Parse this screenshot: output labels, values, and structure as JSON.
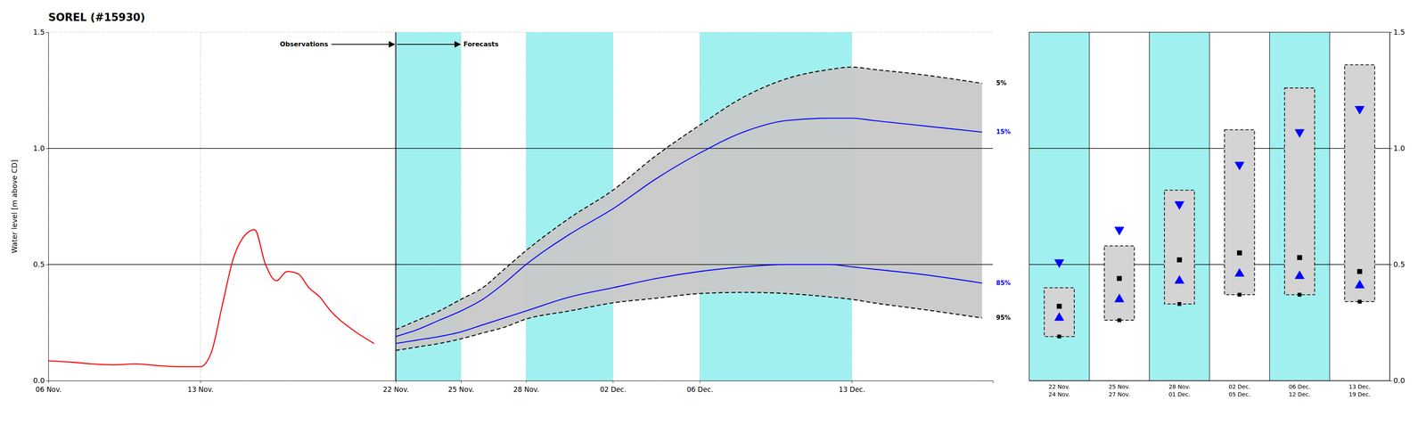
{
  "chart_data": [
    {
      "type": "line",
      "title": "SOREL (#15930)",
      "ylabel": "Water level [m above CD]",
      "xlim": [
        0,
        43.5
      ],
      "xticks": [
        {
          "value": 0,
          "label": "06 Nov."
        },
        {
          "value": 7,
          "label": "13 Nov."
        },
        {
          "value": 16,
          "label": "22 Nov."
        },
        {
          "value": 19,
          "label": "25 Nov."
        },
        {
          "value": 22,
          "label": "28 Nov."
        },
        {
          "value": 26,
          "label": "02 Dec."
        },
        {
          "value": 30,
          "label": "06 Dec."
        },
        {
          "value": 37,
          "label": "13 Dec."
        }
      ],
      "ylim": [
        0.0,
        1.5
      ],
      "yticks": [
        {
          "value": 0,
          "label": "0.0"
        },
        0.5,
        {
          "value": 1,
          "label": "1.0"
        },
        1.5
      ],
      "grid": true,
      "bands": {
        "ranges": [
          [
            16,
            19
          ],
          [
            22,
            26
          ],
          [
            30,
            37
          ]
        ],
        "color": "#6ee8e8"
      },
      "forecast_start": 16,
      "reference_lines": [
        0.5,
        1.0
      ],
      "annotations": [
        "Observations",
        "Forecasts"
      ],
      "series": [
        {
          "color": "red",
          "line_style": "solid",
          "x": [
            0,
            1,
            2,
            3,
            4,
            5,
            6,
            7,
            7.5,
            8,
            8.5,
            9,
            9.5,
            10,
            10.5,
            11,
            11.5,
            12,
            12.5,
            13,
            14,
            15
          ],
          "values": [
            0.085,
            0.08,
            0.072,
            0.068,
            0.072,
            0.065,
            0.06,
            0.06,
            0.12,
            0.32,
            0.52,
            0.62,
            0.65,
            0.5,
            0.43,
            0.47,
            0.46,
            0.4,
            0.36,
            0.3,
            0.22,
            0.16
          ]
        },
        {
          "name": "5%",
          "color": "black",
          "line_style": "dashed",
          "x": [
            16,
            17,
            18,
            19,
            20,
            21,
            22,
            24,
            26,
            28,
            30,
            32,
            34,
            36,
            37,
            38,
            40,
            43
          ],
          "values": [
            0.22,
            0.26,
            0.3,
            0.35,
            0.4,
            0.48,
            0.56,
            0.7,
            0.82,
            0.97,
            1.1,
            1.22,
            1.3,
            1.34,
            1.35,
            1.34,
            1.32,
            1.28
          ]
        },
        {
          "name": "15%",
          "color": "blue",
          "line_style": "solid",
          "x": [
            16,
            17,
            18,
            19,
            20,
            21,
            22,
            24,
            26,
            28,
            30,
            32,
            34,
            36,
            37,
            38,
            40,
            43
          ],
          "values": [
            0.19,
            0.22,
            0.26,
            0.3,
            0.35,
            0.42,
            0.5,
            0.63,
            0.74,
            0.87,
            0.98,
            1.07,
            1.12,
            1.13,
            1.13,
            1.12,
            1.1,
            1.07
          ]
        },
        {
          "name": "85%",
          "color": "blue",
          "line_style": "solid",
          "x": [
            16,
            17,
            18,
            19,
            20,
            21,
            22,
            24,
            26,
            28,
            30,
            32,
            34,
            36,
            37,
            38,
            40,
            43
          ],
          "values": [
            0.16,
            0.175,
            0.19,
            0.21,
            0.24,
            0.27,
            0.3,
            0.36,
            0.4,
            0.44,
            0.47,
            0.49,
            0.5,
            0.5,
            0.49,
            0.48,
            0.46,
            0.42
          ]
        },
        {
          "name": "95%",
          "color": "black",
          "line_style": "dashed",
          "x": [
            16,
            17,
            18,
            19,
            20,
            21,
            22,
            24,
            26,
            28,
            30,
            32,
            34,
            36,
            37,
            38,
            40,
            43
          ],
          "values": [
            0.13,
            0.145,
            0.16,
            0.18,
            0.205,
            0.23,
            0.265,
            0.3,
            0.335,
            0.355,
            0.375,
            0.38,
            0.375,
            0.36,
            0.35,
            0.335,
            0.31,
            0.27
          ]
        }
      ]
    },
    {
      "type": "box",
      "categories": [
        "22 Nov.\n24 Nov.",
        "25 Nov.\n27 Nov.",
        "28 Nov.\n01 Dec.",
        "02 Dec.\n05 Dec.",
        "06 Dec.\n12 Dec.",
        "13 Dec.\n19 Dec."
      ],
      "ylim": [
        0.0,
        1.5
      ],
      "yticks": [
        {
          "value": 0,
          "label": "0.0"
        },
        0.5,
        {
          "value": 1,
          "label": "1.0"
        },
        1.5
      ],
      "grid": true,
      "reference_lines": [
        0.5,
        1.0
      ],
      "bands": {
        "shaded": [
          true,
          false,
          true,
          false,
          true,
          false
        ],
        "color": "#6ee8e8"
      },
      "p5": [
        0.4,
        0.58,
        0.82,
        1.08,
        1.26,
        1.36
      ],
      "p15": [
        0.51,
        0.65,
        0.76,
        0.93,
        1.07,
        1.17
      ],
      "median": [
        0.32,
        0.44,
        0.52,
        0.55,
        0.53,
        0.47
      ],
      "p85": [
        0.27,
        0.35,
        0.43,
        0.46,
        0.45,
        0.41
      ],
      "p95": [
        0.19,
        0.26,
        0.33,
        0.37,
        0.37,
        0.34
      ]
    }
  ]
}
